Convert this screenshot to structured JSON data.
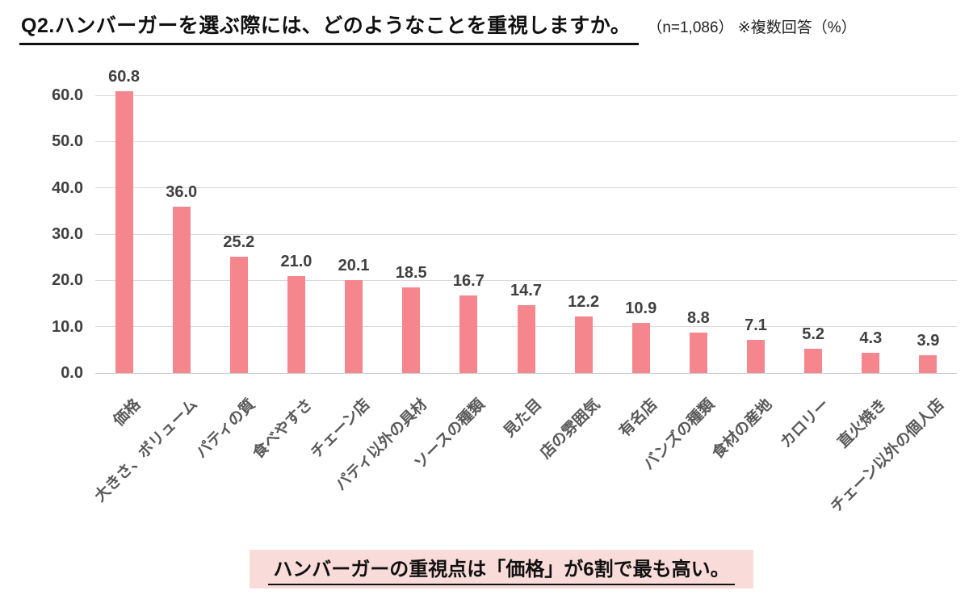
{
  "header": {
    "title": "Q2.ハンバーガーを選ぶ際には、どのようなことを重視しますか。",
    "note": "（n=1,086） ※複数回答（%）"
  },
  "chart_data": {
    "type": "bar",
    "title": "",
    "xlabel": "",
    "ylabel": "",
    "categories": [
      "価格",
      "大きさ、ボリューム",
      "パティの質",
      "食べやすさ",
      "チェーン店",
      "パティ以外の具材",
      "ソースの種類",
      "見た目",
      "店の雰囲気",
      "有名店",
      "バンズの種類",
      "食材の産地",
      "カロリー",
      "直火焼き",
      "チェーン以外の個人店"
    ],
    "values": [
      60.8,
      36.0,
      25.2,
      21.0,
      20.1,
      18.5,
      16.7,
      14.7,
      12.2,
      10.9,
      8.8,
      7.1,
      5.2,
      4.3,
      3.9
    ],
    "ylim": [
      0,
      60
    ],
    "yticks": [
      0,
      10,
      20,
      30,
      40,
      50,
      60
    ],
    "ytick_labels": [
      "0.0",
      "10.0",
      "20.0",
      "30.0",
      "40.0",
      "50.0",
      "60.0"
    ],
    "grid": true,
    "legend": "none",
    "xlabel_rotation_deg": 45
  },
  "callout": {
    "text": "ハンバーガーの重視点は「価格」が6割で最も高い。"
  },
  "colors": {
    "bar": "#F5868E",
    "grid": "#D9D9D9",
    "axis": "#C9C9C9",
    "tick_text": "#404040",
    "xlabel_text": "#595959",
    "callout_bg": "#F9DCDA"
  }
}
